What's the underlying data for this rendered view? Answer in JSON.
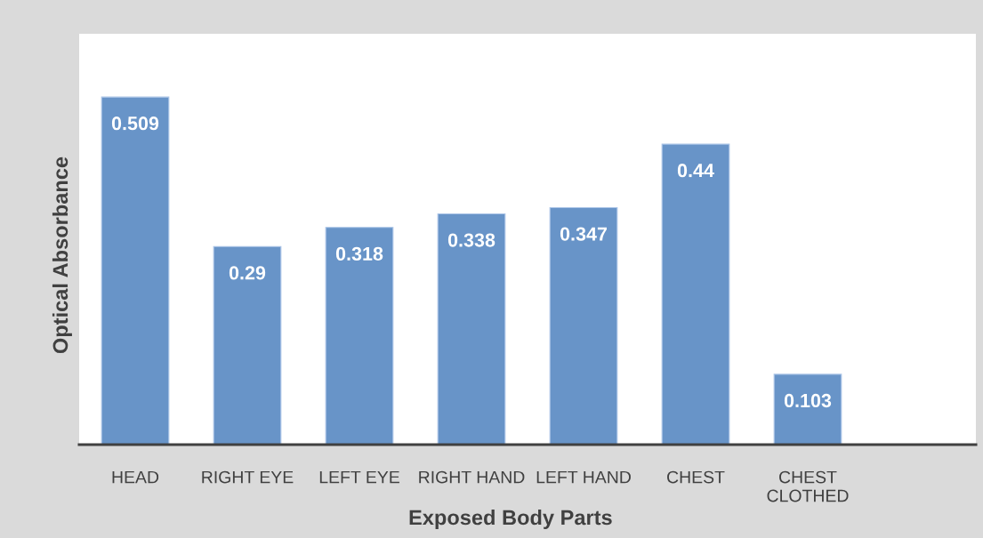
{
  "chart_data": {
    "type": "bar",
    "xlabel": "Exposed Body Parts",
    "ylabel": "Optical Absorbance",
    "categories": [
      "HEAD",
      "RIGHT EYE",
      "LEFT EYE",
      "RIGHT HAND",
      "LEFT HAND",
      "CHEST",
      "CHEST\nCLOTHED",
      null
    ],
    "values": [
      0.509,
      0.29,
      0.318,
      0.338,
      0.347,
      0.44,
      0.103,
      null
    ],
    "color": "#6894c8",
    "data_labels": true,
    "tick_labels": "x"
  }
}
